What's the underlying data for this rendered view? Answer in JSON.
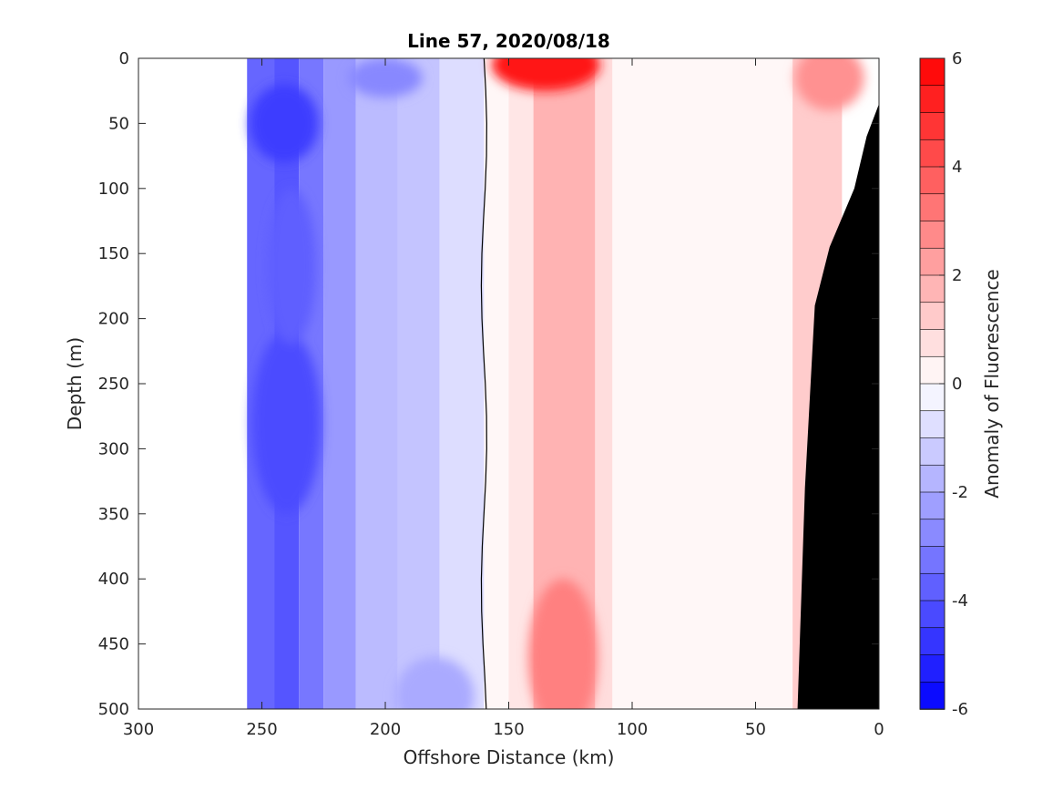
{
  "chart_data": {
    "type": "heatmap",
    "title": "Line 57, 2020/08/18",
    "xlabel": "Offshore Distance (km)",
    "ylabel": "Depth (m)",
    "colorbar_label": "Anomaly of Fluorescence",
    "xlim": [
      300,
      0
    ],
    "ylim": [
      500,
      0
    ],
    "clim": [
      -6,
      6
    ],
    "x_ticks": [
      "300",
      "250",
      "200",
      "150",
      "100",
      "50",
      "0"
    ],
    "x_tick_values": [
      300,
      250,
      200,
      150,
      100,
      50,
      0
    ],
    "y_ticks": [
      "0",
      "50",
      "100",
      "150",
      "200",
      "250",
      "300",
      "350",
      "400",
      "450",
      "500"
    ],
    "y_tick_values": [
      0,
      50,
      100,
      150,
      200,
      250,
      300,
      350,
      400,
      450,
      500
    ],
    "colorbar_ticks": [
      "6",
      "4",
      "2",
      "0",
      "-2",
      "-4",
      "-6"
    ],
    "colorbar_tick_values": [
      6,
      4,
      2,
      0,
      -2,
      -4,
      -6
    ],
    "contour_level": 0,
    "data_extent_km": [
      256,
      0
    ],
    "colors": {
      "negative": "#0000ff",
      "positive": "#ff0000",
      "neutral": "#ffffff",
      "bathymetry": "#000000"
    },
    "bands": [
      {
        "x": [
          256,
          245
        ],
        "value": -3.6
      },
      {
        "x": [
          245,
          235
        ],
        "value": -4.0
      },
      {
        "x": [
          235,
          225
        ],
        "value": -3.2
      },
      {
        "x": [
          225,
          212
        ],
        "value": -2.4
      },
      {
        "x": [
          212,
          195
        ],
        "value": -1.6
      },
      {
        "x": [
          195,
          178
        ],
        "value": -1.4
      },
      {
        "x": [
          178,
          160
        ],
        "value": -0.8
      },
      {
        "x": [
          160,
          150
        ],
        "value": 0.2
      },
      {
        "x": [
          150,
          140
        ],
        "value": 0.6
      },
      {
        "x": [
          140,
          115
        ],
        "value": 1.8
      },
      {
        "x": [
          115,
          108
        ],
        "value": 0.8
      },
      {
        "x": [
          108,
          35
        ],
        "value": 0.2
      },
      {
        "x": [
          35,
          15
        ],
        "value": 1.2
      }
    ],
    "blobs": [
      {
        "x": 241,
        "y": 50,
        "rx": 14,
        "ry": 30,
        "value": -4.6
      },
      {
        "x": 240,
        "y": 280,
        "rx": 14,
        "ry": 70,
        "value": -4.2
      },
      {
        "x": 238,
        "y": 160,
        "rx": 10,
        "ry": 60,
        "value": -3.8
      },
      {
        "x": 200,
        "y": 15,
        "rx": 15,
        "ry": 15,
        "value": -2.8
      },
      {
        "x": 180,
        "y": 490,
        "rx": 16,
        "ry": 30,
        "value": -2.0
      },
      {
        "x": 135,
        "y": 5,
        "rx": 22,
        "ry": 20,
        "value": 5.5
      },
      {
        "x": 128,
        "y": 460,
        "rx": 14,
        "ry": 60,
        "value": 3.0
      },
      {
        "x": 20,
        "y": 15,
        "rx": 14,
        "ry": 25,
        "value": 2.6
      }
    ],
    "bathymetry_profile": [
      {
        "x": 0,
        "y": 35
      },
      {
        "x": 5,
        "y": 60
      },
      {
        "x": 10,
        "y": 100
      },
      {
        "x": 20,
        "y": 145
      },
      {
        "x": 26,
        "y": 190
      },
      {
        "x": 30,
        "y": 330
      },
      {
        "x": 33,
        "y": 500
      }
    ]
  }
}
